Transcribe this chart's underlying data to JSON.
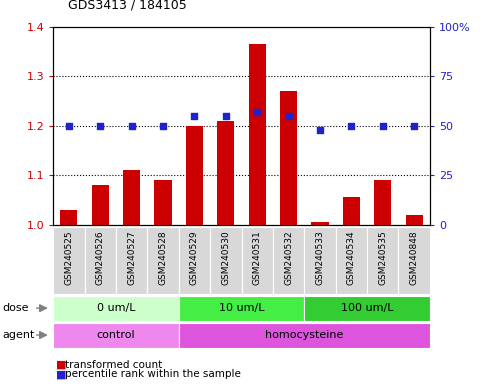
{
  "title": "GDS3413 / 184105",
  "samples": [
    "GSM240525",
    "GSM240526",
    "GSM240527",
    "GSM240528",
    "GSM240529",
    "GSM240530",
    "GSM240531",
    "GSM240532",
    "GSM240533",
    "GSM240534",
    "GSM240535",
    "GSM240848"
  ],
  "bar_values": [
    1.03,
    1.08,
    1.11,
    1.09,
    1.2,
    1.21,
    1.365,
    1.27,
    1.005,
    1.055,
    1.09,
    1.02
  ],
  "blue_dot_pct": [
    50,
    50,
    50,
    50,
    55,
    55,
    57,
    55,
    48,
    50,
    50,
    50
  ],
  "ylim_left": [
    1.0,
    1.4
  ],
  "ylim_right": [
    0,
    100
  ],
  "yticks_left": [
    1.0,
    1.1,
    1.2,
    1.3,
    1.4
  ],
  "yticks_right": [
    0,
    25,
    50,
    75,
    100
  ],
  "ytick_labels_right": [
    "0",
    "25",
    "50",
    "75",
    "100%"
  ],
  "bar_color": "#cc0000",
  "dot_color": "#2222cc",
  "dose_groups": [
    {
      "label": "0 um/L",
      "start": 0,
      "end": 4,
      "color": "#ccffcc"
    },
    {
      "label": "10 um/L",
      "start": 4,
      "end": 8,
      "color": "#44ee44"
    },
    {
      "label": "100 um/L",
      "start": 8,
      "end": 12,
      "color": "#33cc33"
    }
  ],
  "agent_groups": [
    {
      "label": "control",
      "start": 0,
      "end": 4,
      "color": "#ee88ee"
    },
    {
      "label": "homocysteine",
      "start": 4,
      "end": 12,
      "color": "#dd55dd"
    }
  ],
  "legend_items": [
    {
      "label": "transformed count",
      "color": "#cc0000"
    },
    {
      "label": "percentile rank within the sample",
      "color": "#2222cc"
    }
  ],
  "tick_label_color_left": "#cc0000",
  "tick_label_color_right": "#2222cc",
  "label_color_left": "gray",
  "label_color_right": "gray"
}
